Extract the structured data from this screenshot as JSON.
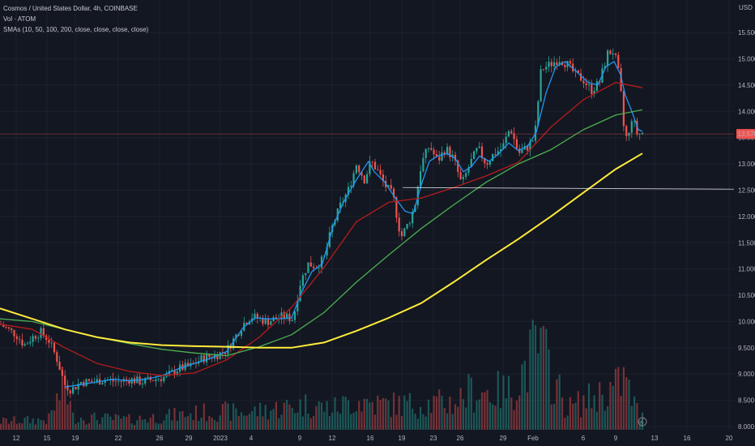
{
  "legend": {
    "symbol_line": "Cosmos / United States Dollar, 4h, COINBASE",
    "volume_line": "Vol · ATOM",
    "sma_line": "SMAs (10, 50, 100, 200, close, close, close, close)"
  },
  "axis": {
    "currency": "USD",
    "y_ticks": [
      "15.500",
      "15.000",
      "14.500",
      "14.000",
      "13.500",
      "13.000",
      "12.500",
      "12.000",
      "11.500",
      "11.000",
      "10.500",
      "10.000",
      "9.500",
      "9.000",
      "8.500",
      "8.000"
    ],
    "x_ticks": [
      "12",
      "15",
      "19",
      "22",
      "26",
      "29",
      "2023",
      "4",
      "9",
      "12",
      "16",
      "19",
      "23",
      "26",
      "29",
      "Feb",
      "6",
      "9",
      "13",
      "16",
      "20"
    ],
    "last_price": "13.570"
  },
  "colors": {
    "background": "#131722",
    "up": "#26a69a",
    "down": "#ef5350",
    "sma10": "#2196f3",
    "sma50": "#b71c1c",
    "sma100": "#4caf50",
    "sma200": "#ffeb3b",
    "hline": "#ffffff"
  },
  "chart_data": {
    "type": "candlestick",
    "timeframe": "4h",
    "y_range": [
      7.9,
      15.95
    ],
    "horizontal_line": 12.55,
    "current_price_line": 13.57,
    "close_path": [
      [
        0,
        9.95
      ],
      [
        10,
        9.85
      ],
      [
        20,
        9.75
      ],
      [
        30,
        9.55
      ],
      [
        40,
        9.7
      ],
      [
        50,
        9.8
      ],
      [
        60,
        9.65
      ],
      [
        70,
        9.3
      ],
      [
        80,
        8.8
      ],
      [
        88,
        8.7
      ],
      [
        100,
        8.85
      ],
      [
        115,
        8.85
      ],
      [
        130,
        8.9
      ],
      [
        145,
        8.85
      ],
      [
        160,
        8.9
      ],
      [
        175,
        8.85
      ],
      [
        190,
        8.9
      ],
      [
        205,
        8.95
      ],
      [
        220,
        9.1
      ],
      [
        235,
        9.15
      ],
      [
        250,
        9.3
      ],
      [
        265,
        9.35
      ],
      [
        280,
        9.45
      ],
      [
        290,
        9.7
      ],
      [
        300,
        9.95
      ],
      [
        310,
        10.1
      ],
      [
        320,
        10.05
      ],
      [
        330,
        10.0
      ],
      [
        340,
        10.05
      ],
      [
        350,
        10.1
      ],
      [
        362,
        10.05
      ],
      [
        370,
        10.7
      ],
      [
        380,
        11.1
      ],
      [
        390,
        11.05
      ],
      [
        400,
        11.2
      ],
      [
        410,
        11.8
      ],
      [
        420,
        12.2
      ],
      [
        430,
        12.5
      ],
      [
        440,
        13.0
      ],
      [
        450,
        12.7
      ],
      [
        458,
        13.05
      ],
      [
        465,
        12.9
      ],
      [
        475,
        12.6
      ],
      [
        485,
        12.4
      ],
      [
        495,
        11.6
      ],
      [
        505,
        11.9
      ],
      [
        512,
        12.2
      ],
      [
        520,
        13.0
      ],
      [
        530,
        13.35
      ],
      [
        540,
        13.05
      ],
      [
        550,
        13.3
      ],
      [
        560,
        13.1
      ],
      [
        570,
        12.6
      ],
      [
        580,
        13.0
      ],
      [
        590,
        13.3
      ],
      [
        600,
        13.0
      ],
      [
        610,
        13.2
      ],
      [
        620,
        13.3
      ],
      [
        630,
        13.7
      ],
      [
        640,
        13.2
      ],
      [
        650,
        13.3
      ],
      [
        660,
        13.5
      ],
      [
        668,
        14.8
      ],
      [
        680,
        14.9
      ],
      [
        690,
        15.0
      ],
      [
        700,
        14.9
      ],
      [
        710,
        14.7
      ],
      [
        720,
        14.6
      ],
      [
        730,
        14.4
      ],
      [
        740,
        14.55
      ],
      [
        750,
        15.1
      ],
      [
        758,
        15.15
      ],
      [
        765,
        14.6
      ],
      [
        770,
        13.7
      ],
      [
        775,
        13.4
      ],
      [
        780,
        13.9
      ],
      [
        787,
        13.55
      ],
      [
        793,
        13.6
      ]
    ],
    "volume_path": [
      [
        0,
        0.1
      ],
      [
        60,
        0.12
      ],
      [
        80,
        0.55
      ],
      [
        90,
        0.15
      ],
      [
        160,
        0.12
      ],
      [
        270,
        0.22
      ],
      [
        300,
        0.2
      ],
      [
        380,
        0.3
      ],
      [
        410,
        0.25
      ],
      [
        440,
        0.35
      ],
      [
        470,
        0.3
      ],
      [
        510,
        0.3
      ],
      [
        560,
        0.32
      ],
      [
        580,
        0.45
      ],
      [
        630,
        0.45
      ],
      [
        665,
        1.0
      ],
      [
        700,
        0.25
      ],
      [
        760,
        0.5
      ],
      [
        770,
        0.6
      ],
      [
        790,
        0.15
      ]
    ],
    "series": [
      {
        "name": "SMA 10",
        "color": "#2196f3",
        "points": [
          [
            80,
            8.75
          ],
          [
            100,
            8.8
          ],
          [
            120,
            8.85
          ],
          [
            140,
            8.9
          ],
          [
            160,
            8.87
          ],
          [
            180,
            8.9
          ],
          [
            200,
            8.97
          ],
          [
            220,
            9.1
          ],
          [
            240,
            9.2
          ],
          [
            260,
            9.3
          ],
          [
            280,
            9.43
          ],
          [
            300,
            9.88
          ],
          [
            315,
            10.07
          ],
          [
            330,
            10.05
          ],
          [
            345,
            10.05
          ],
          [
            360,
            10.07
          ],
          [
            372,
            10.55
          ],
          [
            385,
            10.95
          ],
          [
            398,
            11.1
          ],
          [
            412,
            11.85
          ],
          [
            425,
            12.3
          ],
          [
            440,
            12.7
          ],
          [
            455,
            13.05
          ],
          [
            462,
            12.85
          ],
          [
            475,
            12.65
          ],
          [
            488,
            12.35
          ],
          [
            500,
            12.1
          ],
          [
            510,
            12.05
          ],
          [
            520,
            12.6
          ],
          [
            530,
            13.05
          ],
          [
            540,
            13.15
          ],
          [
            552,
            13.2
          ],
          [
            562,
            13.1
          ],
          [
            572,
            12.85
          ],
          [
            582,
            12.95
          ],
          [
            592,
            13.15
          ],
          [
            604,
            13.05
          ],
          [
            616,
            13.2
          ],
          [
            628,
            13.4
          ],
          [
            640,
            13.25
          ],
          [
            652,
            13.35
          ],
          [
            662,
            13.6
          ],
          [
            674,
            14.35
          ],
          [
            686,
            14.85
          ],
          [
            698,
            14.95
          ],
          [
            712,
            14.75
          ],
          [
            726,
            14.55
          ],
          [
            738,
            14.5
          ],
          [
            748,
            14.85
          ],
          [
            758,
            14.95
          ],
          [
            766,
            14.7
          ],
          [
            772,
            14.3
          ],
          [
            780,
            14.0
          ],
          [
            788,
            13.65
          ],
          [
            793,
            13.62
          ]
        ]
      },
      {
        "name": "SMA 50",
        "color": "#b71c1c",
        "points": [
          [
            0,
            9.95
          ],
          [
            40,
            9.85
          ],
          [
            80,
            9.5
          ],
          [
            120,
            9.2
          ],
          [
            160,
            9.05
          ],
          [
            200,
            8.97
          ],
          [
            240,
            9.02
          ],
          [
            280,
            9.27
          ],
          [
            320,
            9.7
          ],
          [
            360,
            10.27
          ],
          [
            400,
            11.03
          ],
          [
            440,
            11.9
          ],
          [
            480,
            12.27
          ],
          [
            520,
            12.35
          ],
          [
            560,
            12.55
          ],
          [
            600,
            12.77
          ],
          [
            640,
            13.03
          ],
          [
            680,
            13.7
          ],
          [
            720,
            14.22
          ],
          [
            760,
            14.55
          ],
          [
            793,
            14.45
          ]
        ]
      },
      {
        "name": "SMA 100",
        "color": "#4caf50",
        "points": [
          [
            0,
            10.05
          ],
          [
            40,
            10.0
          ],
          [
            80,
            9.85
          ],
          [
            120,
            9.7
          ],
          [
            160,
            9.58
          ],
          [
            200,
            9.47
          ],
          [
            240,
            9.4
          ],
          [
            280,
            9.35
          ],
          [
            320,
            9.52
          ],
          [
            360,
            9.75
          ],
          [
            400,
            10.17
          ],
          [
            440,
            10.75
          ],
          [
            480,
            11.27
          ],
          [
            520,
            11.77
          ],
          [
            560,
            12.22
          ],
          [
            600,
            12.65
          ],
          [
            640,
            13.0
          ],
          [
            680,
            13.27
          ],
          [
            720,
            13.65
          ],
          [
            760,
            13.93
          ],
          [
            793,
            14.03
          ]
        ]
      },
      {
        "name": "SMA 200",
        "color": "#ffeb3b",
        "points": [
          [
            0,
            10.25
          ],
          [
            40,
            10.05
          ],
          [
            80,
            9.85
          ],
          [
            120,
            9.7
          ],
          [
            160,
            9.6
          ],
          [
            200,
            9.55
          ],
          [
            240,
            9.53
          ],
          [
            280,
            9.52
          ],
          [
            320,
            9.5
          ],
          [
            360,
            9.5
          ],
          [
            400,
            9.6
          ],
          [
            440,
            9.82
          ],
          [
            480,
            10.07
          ],
          [
            520,
            10.35
          ],
          [
            560,
            10.75
          ],
          [
            600,
            11.17
          ],
          [
            640,
            11.57
          ],
          [
            680,
            12.0
          ],
          [
            720,
            12.45
          ],
          [
            760,
            12.9
          ],
          [
            793,
            13.2
          ]
        ]
      }
    ]
  }
}
